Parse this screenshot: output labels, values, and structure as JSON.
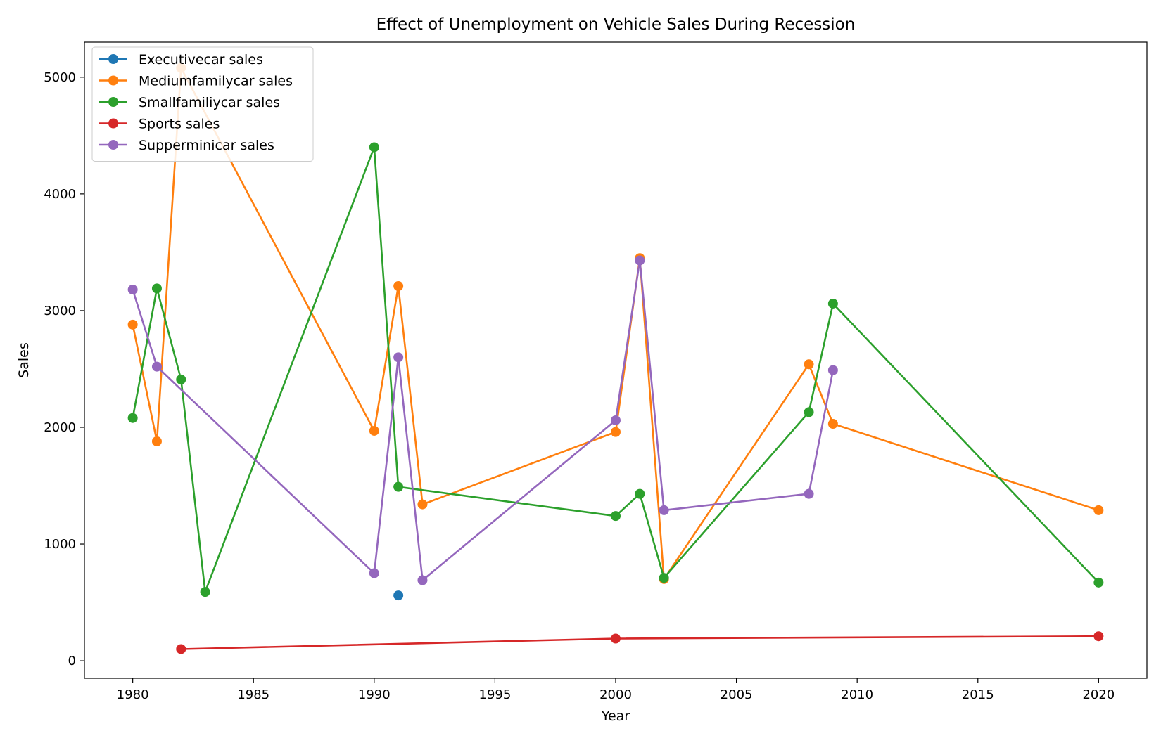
{
  "chart_data": {
    "type": "line",
    "title": "Effect of Unemployment on Vehicle Sales During Recession",
    "xlabel": "Year",
    "ylabel": "Sales",
    "xlim": [
      1978,
      2022
    ],
    "ylim": [
      -150,
      5300
    ],
    "xticks": [
      1980,
      1985,
      1990,
      1995,
      2000,
      2005,
      2010,
      2015,
      2020
    ],
    "yticks": [
      0,
      1000,
      2000,
      3000,
      4000,
      5000
    ],
    "grid": false,
    "legend_position": "top-left",
    "series": [
      {
        "name": "Executivecar sales",
        "color": "#1f77b4",
        "points": [
          [
            1991,
            560
          ]
        ]
      },
      {
        "name": "Mediumfamilycar sales",
        "color": "#ff7f0e",
        "points": [
          [
            1980,
            2880
          ],
          [
            1981,
            1880
          ],
          [
            1982,
            5080
          ],
          [
            1990,
            1970
          ],
          [
            1991,
            3210
          ],
          [
            1992,
            1340
          ],
          [
            2000,
            1960
          ],
          [
            2001,
            3450
          ],
          [
            2002,
            700
          ],
          [
            2008,
            2540
          ],
          [
            2009,
            2030
          ],
          [
            2020,
            1290
          ]
        ]
      },
      {
        "name": "Smallfamiliycar sales",
        "color": "#2ca02c",
        "points": [
          [
            1980,
            2080
          ],
          [
            1981,
            3190
          ],
          [
            1982,
            2410
          ],
          [
            1983,
            590
          ],
          [
            1990,
            4400
          ],
          [
            1991,
            1490
          ],
          [
            2000,
            1240
          ],
          [
            2001,
            1430
          ],
          [
            2002,
            710
          ],
          [
            2008,
            2130
          ],
          [
            2009,
            3060
          ],
          [
            2020,
            670
          ]
        ]
      },
      {
        "name": "Sports sales",
        "color": "#d62728",
        "points": [
          [
            1982,
            100
          ],
          [
            2000,
            190
          ],
          [
            2020,
            210
          ]
        ]
      },
      {
        "name": "Supperminicar sales",
        "color": "#9467bd",
        "points": [
          [
            1980,
            3180
          ],
          [
            1981,
            2520
          ],
          [
            1990,
            750
          ],
          [
            1991,
            2600
          ],
          [
            1992,
            690
          ],
          [
            2000,
            2060
          ],
          [
            2001,
            3430
          ],
          [
            2002,
            1290
          ],
          [
            2008,
            1430
          ],
          [
            2009,
            2490
          ]
        ]
      }
    ]
  }
}
